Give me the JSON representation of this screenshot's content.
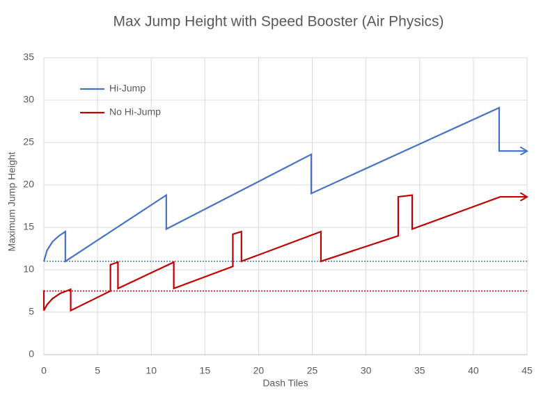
{
  "chart_data": {
    "type": "line",
    "title": "Max Jump Height with Speed Booster (Air Physics)",
    "x_label": "Dash Tiles",
    "y_label": "Maximum Jump Height",
    "xlim": [
      0,
      45
    ],
    "xticks": [
      0,
      5,
      10,
      15,
      20,
      25,
      30,
      35,
      40,
      45
    ],
    "ylim": [
      0,
      35
    ],
    "yticks": [
      0,
      5,
      10,
      15,
      20,
      25,
      30,
      35
    ],
    "grid": true,
    "legend": "upper-left",
    "series": [
      {
        "name": "Hi-Jump",
        "color": "#4472c4",
        "x": [
          0,
          0.3,
          0.8,
          1.4,
          2,
          2,
          11.4,
          11.4,
          24.9,
          24.9,
          42.4,
          42.4,
          45
        ],
        "values": [
          11,
          12.3,
          13.3,
          14,
          14.5,
          11,
          18.8,
          14.8,
          23.6,
          19,
          29.1,
          24,
          24
        ]
      },
      {
        "name": "No Hi-Jump",
        "color": "#c00000",
        "x": [
          0,
          0,
          0.3,
          0.8,
          1.5,
          2.5,
          2.5,
          6.2,
          6.2,
          6.9,
          6.9,
          12.1,
          12.1,
          17.6,
          17.6,
          18.4,
          18.4,
          25.8,
          25.8,
          33,
          33,
          34.3,
          34.3,
          42.5,
          45
        ],
        "values": [
          7.6,
          5.2,
          5.9,
          6.6,
          7.2,
          7.7,
          5.2,
          7.5,
          10.6,
          10.9,
          7.8,
          10.9,
          7.8,
          10.4,
          14.2,
          14.5,
          11,
          14.5,
          11,
          14,
          18.6,
          18.8,
          14.8,
          18.6,
          18.6
        ]
      }
    ],
    "reference_lines": [
      {
        "value": 11,
        "color": "#4472c4"
      },
      {
        "value": 7.5,
        "color": "#c00000"
      }
    ]
  }
}
